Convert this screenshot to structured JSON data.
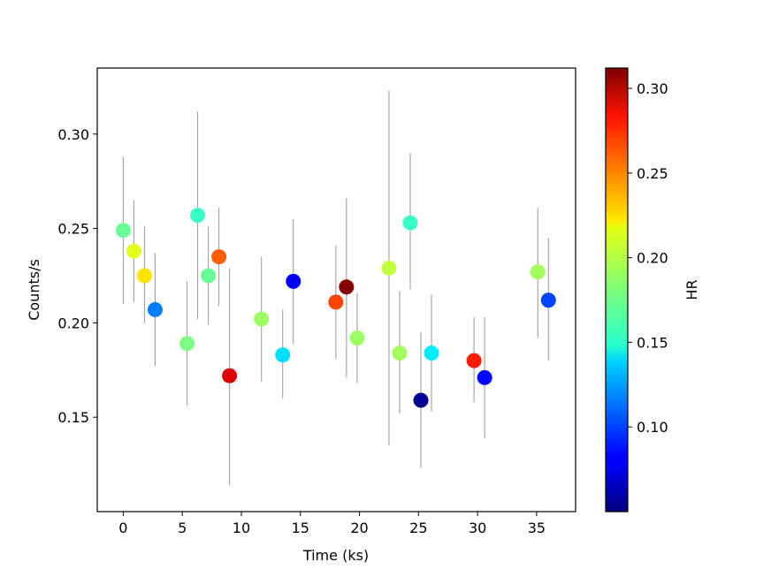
{
  "chart_data": {
    "type": "scatter",
    "xlabel": "Time (ks)",
    "ylabel": "Counts/s",
    "xlim": [
      -2.2,
      38.3
    ],
    "ylim": [
      0.1,
      0.335
    ],
    "x_ticks": [
      0,
      5,
      10,
      15,
      20,
      25,
      30,
      35
    ],
    "x_tick_labels": [
      "0",
      "5",
      "10",
      "15",
      "20",
      "25",
      "30",
      "35"
    ],
    "y_ticks": [
      0.15,
      0.2,
      0.25,
      0.3
    ],
    "y_tick_labels": [
      "0.15",
      "0.20",
      "0.25",
      "0.30"
    ],
    "grid": false,
    "error_bar_color": "#a0a0a0",
    "colorbar": {
      "label": "HR",
      "colormap": "jet",
      "range": [
        0.05,
        0.312
      ],
      "ticks": [
        0.1,
        0.15,
        0.2,
        0.25,
        0.3
      ],
      "tick_labels": [
        "0.10",
        "0.15",
        "0.20",
        "0.25",
        "0.30"
      ]
    },
    "points": [
      {
        "x": 0.0,
        "y": 0.249,
        "err_lo": 0.21,
        "err_hi": 0.288,
        "hr": 0.175
      },
      {
        "x": 0.9,
        "y": 0.238,
        "err_lo": 0.211,
        "err_hi": 0.265,
        "hr": 0.207
      },
      {
        "x": 1.8,
        "y": 0.225,
        "err_lo": 0.2,
        "err_hi": 0.251,
        "hr": 0.221
      },
      {
        "x": 2.7,
        "y": 0.207,
        "err_lo": 0.177,
        "err_hi": 0.237,
        "hr": 0.115
      },
      {
        "x": 5.4,
        "y": 0.189,
        "err_lo": 0.156,
        "err_hi": 0.222,
        "hr": 0.18
      },
      {
        "x": 6.3,
        "y": 0.257,
        "err_lo": 0.202,
        "err_hi": 0.312,
        "hr": 0.163
      },
      {
        "x": 7.2,
        "y": 0.225,
        "err_lo": 0.199,
        "err_hi": 0.251,
        "hr": 0.175
      },
      {
        "x": 8.1,
        "y": 0.235,
        "err_lo": 0.209,
        "err_hi": 0.261,
        "hr": 0.256
      },
      {
        "x": 9.0,
        "y": 0.172,
        "err_lo": 0.114,
        "err_hi": 0.229,
        "hr": 0.288
      },
      {
        "x": 11.7,
        "y": 0.202,
        "err_lo": 0.169,
        "err_hi": 0.235,
        "hr": 0.188
      },
      {
        "x": 13.5,
        "y": 0.183,
        "err_lo": 0.16,
        "err_hi": 0.207,
        "hr": 0.14
      },
      {
        "x": 14.4,
        "y": 0.222,
        "err_lo": 0.189,
        "err_hi": 0.255,
        "hr": 0.082
      },
      {
        "x": 18.0,
        "y": 0.211,
        "err_lo": 0.181,
        "err_hi": 0.241,
        "hr": 0.262
      },
      {
        "x": 18.9,
        "y": 0.219,
        "err_lo": 0.171,
        "err_hi": 0.266,
        "hr": 0.31
      },
      {
        "x": 19.8,
        "y": 0.192,
        "err_lo": 0.168,
        "err_hi": 0.216,
        "hr": 0.188
      },
      {
        "x": 22.5,
        "y": 0.229,
        "err_lo": 0.135,
        "err_hi": 0.323,
        "hr": 0.198
      },
      {
        "x": 23.4,
        "y": 0.184,
        "err_lo": 0.152,
        "err_hi": 0.217,
        "hr": 0.19
      },
      {
        "x": 24.3,
        "y": 0.253,
        "err_lo": 0.218,
        "err_hi": 0.29,
        "hr": 0.163
      },
      {
        "x": 25.2,
        "y": 0.159,
        "err_lo": 0.123,
        "err_hi": 0.195,
        "hr": 0.055
      },
      {
        "x": 26.1,
        "y": 0.184,
        "err_lo": 0.153,
        "err_hi": 0.215,
        "hr": 0.143
      },
      {
        "x": 29.7,
        "y": 0.18,
        "err_lo": 0.158,
        "err_hi": 0.203,
        "hr": 0.272
      },
      {
        "x": 30.6,
        "y": 0.171,
        "err_lo": 0.139,
        "err_hi": 0.203,
        "hr": 0.085
      },
      {
        "x": 35.1,
        "y": 0.227,
        "err_lo": 0.192,
        "err_hi": 0.261,
        "hr": 0.19
      },
      {
        "x": 36.0,
        "y": 0.212,
        "err_lo": 0.18,
        "err_hi": 0.245,
        "hr": 0.1
      }
    ]
  }
}
